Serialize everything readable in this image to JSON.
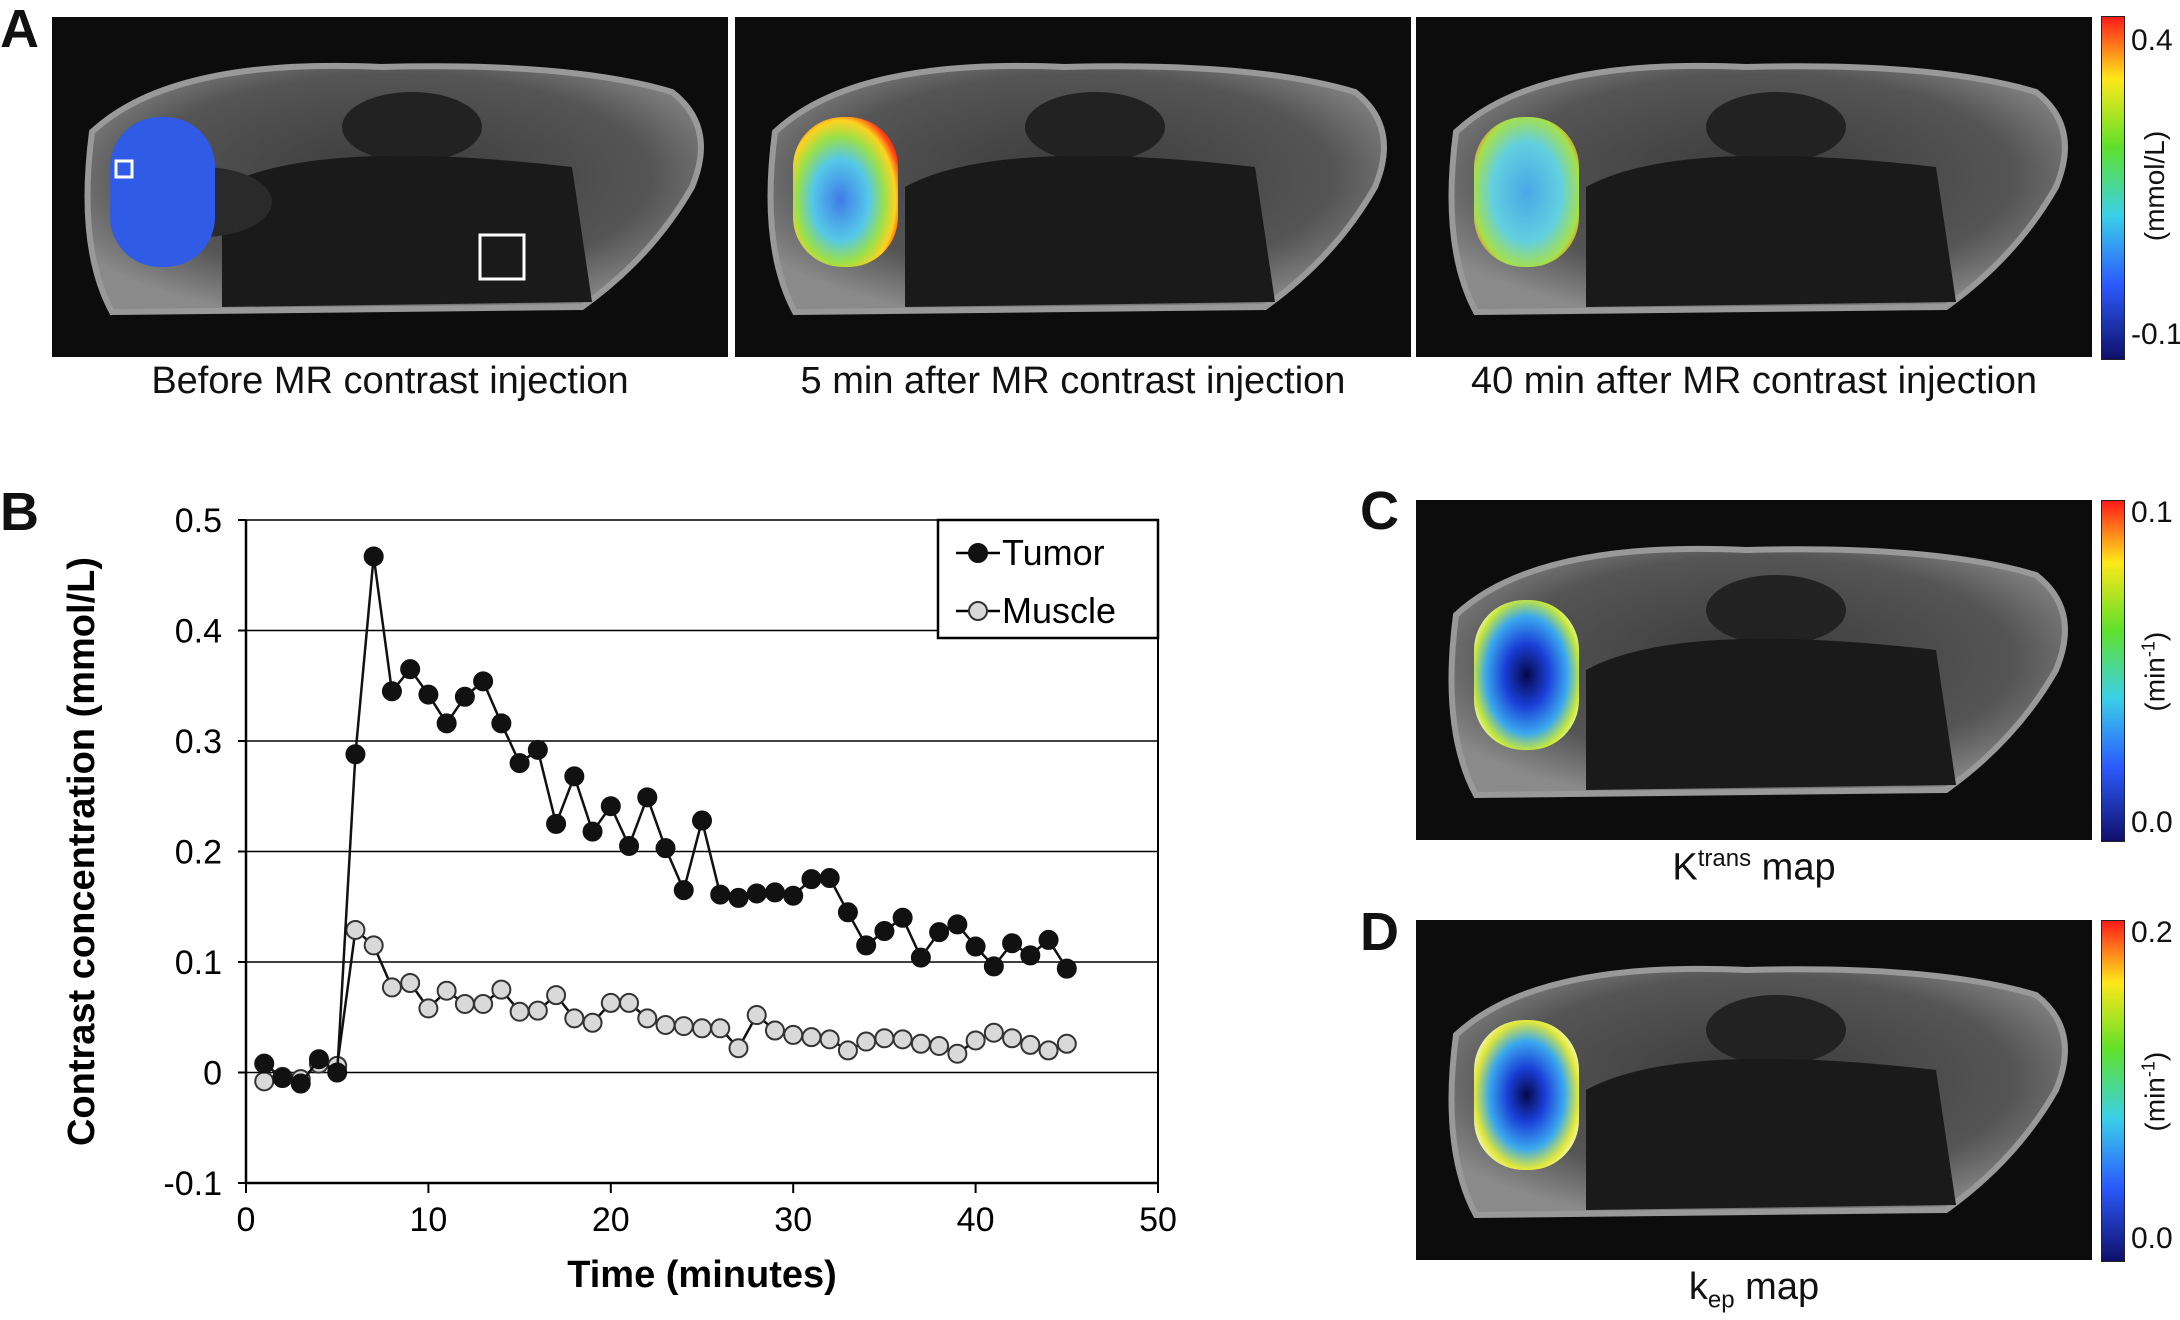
{
  "panels": {
    "A": {
      "letter": "A",
      "captions": [
        "Before MR contrast injection",
        "5 min after MR contrast injection",
        "40 min after MR contrast injection"
      ],
      "colorbar": {
        "max": "0.4",
        "min": "-0.1",
        "unit": "(mmol/L)"
      }
    },
    "B": {
      "letter": "B"
    },
    "C": {
      "letter": "C",
      "caption_main": "K",
      "caption_sup": "trans",
      "caption_rest": " map",
      "colorbar": {
        "max": "0.1",
        "min": "0.0",
        "unit_main": "(min",
        "unit_sup": "-1",
        "unit_end": ")"
      }
    },
    "D": {
      "letter": "D",
      "caption_main": "k",
      "caption_sub": "ep",
      "caption_rest": " map",
      "colorbar": {
        "max": "0.2",
        "min": "0.0",
        "unit_main": "(min",
        "unit_sup": "-1",
        "unit_end": ")"
      }
    }
  },
  "colors": {
    "tumor": "#111111",
    "muscle": "#d9d9d9",
    "muscle_edge": "#333333"
  },
  "chart_data": {
    "type": "line",
    "xlabel": "Time (minutes)",
    "ylabel": "Contrast concentration (mmol/L)",
    "xlim": [
      0,
      50
    ],
    "ylim": [
      -0.1,
      0.5
    ],
    "xticks": [
      0,
      10,
      20,
      30,
      40,
      50
    ],
    "yticks": [
      -0.1,
      0,
      0.1,
      0.2,
      0.3,
      0.4,
      0.5
    ],
    "ytick_labels": [
      "-0.1",
      "0",
      "0.1",
      "0.2",
      "0.3",
      "0.4",
      "0.5"
    ],
    "grid": "horizontal",
    "legend": "top-right",
    "series": [
      {
        "name": "Tumor",
        "x": [
          1,
          2,
          3,
          4,
          5,
          6,
          7,
          8,
          9,
          10,
          11,
          12,
          13,
          14,
          15,
          16,
          17,
          18,
          19,
          20,
          21,
          22,
          23,
          24,
          25,
          26,
          27,
          28,
          29,
          30,
          31,
          32,
          33,
          34,
          35,
          36,
          37,
          38,
          39,
          40,
          41,
          42,
          43,
          44,
          45
        ],
        "y": [
          0.008,
          -0.005,
          -0.01,
          0.012,
          0.0,
          0.288,
          0.467,
          0.345,
          0.365,
          0.342,
          0.316,
          0.34,
          0.354,
          0.316,
          0.28,
          0.292,
          0.225,
          0.268,
          0.218,
          0.241,
          0.205,
          0.249,
          0.203,
          0.165,
          0.228,
          0.161,
          0.158,
          0.162,
          0.163,
          0.16,
          0.175,
          0.176,
          0.145,
          0.115,
          0.128,
          0.14,
          0.104,
          0.127,
          0.134,
          0.114,
          0.096,
          0.117,
          0.106,
          0.12,
          0.094
        ]
      },
      {
        "name": "Muscle",
        "x": [
          1,
          2,
          3,
          4,
          5,
          6,
          7,
          8,
          9,
          10,
          11,
          12,
          13,
          14,
          15,
          16,
          17,
          18,
          19,
          20,
          21,
          22,
          23,
          24,
          25,
          26,
          27,
          28,
          29,
          30,
          31,
          32,
          33,
          34,
          35,
          36,
          37,
          38,
          39,
          40,
          41,
          42,
          43,
          44,
          45
        ],
        "y": [
          -0.008,
          -0.004,
          -0.006,
          0.008,
          0.006,
          0.129,
          0.115,
          0.077,
          0.081,
          0.058,
          0.074,
          0.062,
          0.062,
          0.075,
          0.055,
          0.056,
          0.07,
          0.049,
          0.045,
          0.063,
          0.063,
          0.049,
          0.043,
          0.042,
          0.04,
          0.04,
          0.022,
          0.052,
          0.038,
          0.034,
          0.032,
          0.03,
          0.02,
          0.028,
          0.031,
          0.03,
          0.026,
          0.024,
          0.017,
          0.029,
          0.036,
          0.031,
          0.025,
          0.02,
          0.026
        ]
      }
    ]
  }
}
